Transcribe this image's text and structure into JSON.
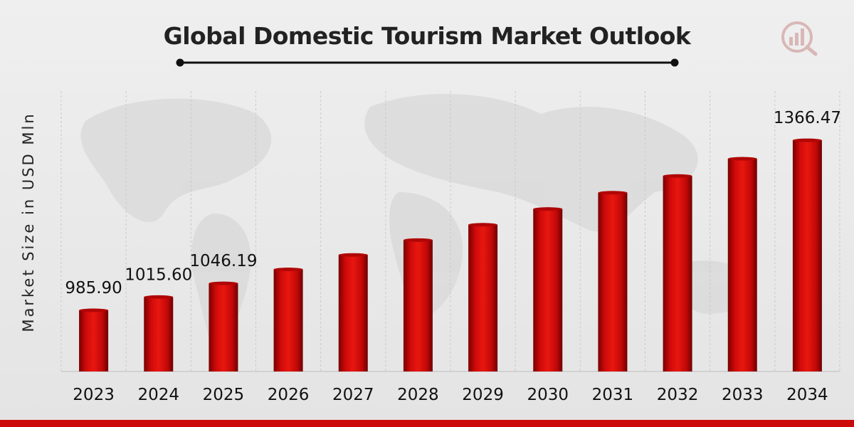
{
  "chart_data": {
    "type": "bar",
    "title": "Global Domestic Tourism Market Outlook",
    "ylabel": "Market Size in USD Mln",
    "xlabel": "",
    "categories": [
      "2023",
      "2024",
      "2025",
      "2026",
      "2027",
      "2028",
      "2029",
      "2030",
      "2031",
      "2032",
      "2033",
      "2034"
    ],
    "values": [
      985.9,
      1015.6,
      1046.19,
      1077.5,
      1109.8,
      1143.1,
      1177.4,
      1212.7,
      1249.1,
      1286.6,
      1325.2,
      1366.47
    ],
    "data_labels": [
      {
        "index": 0,
        "text": "985.90"
      },
      {
        "index": 1,
        "text": "1015.60"
      },
      {
        "index": 2,
        "text": "1046.19"
      },
      {
        "index": 11,
        "text": "1366.47"
      }
    ],
    "grid": "vertical-dashed",
    "legend": "none",
    "bar_color": "#cc0a0a",
    "accent_line_color": "#111111",
    "bottom_bar_color": "#cc0a0a"
  },
  "logo": {
    "icon": "market-research-logo-icon"
  }
}
